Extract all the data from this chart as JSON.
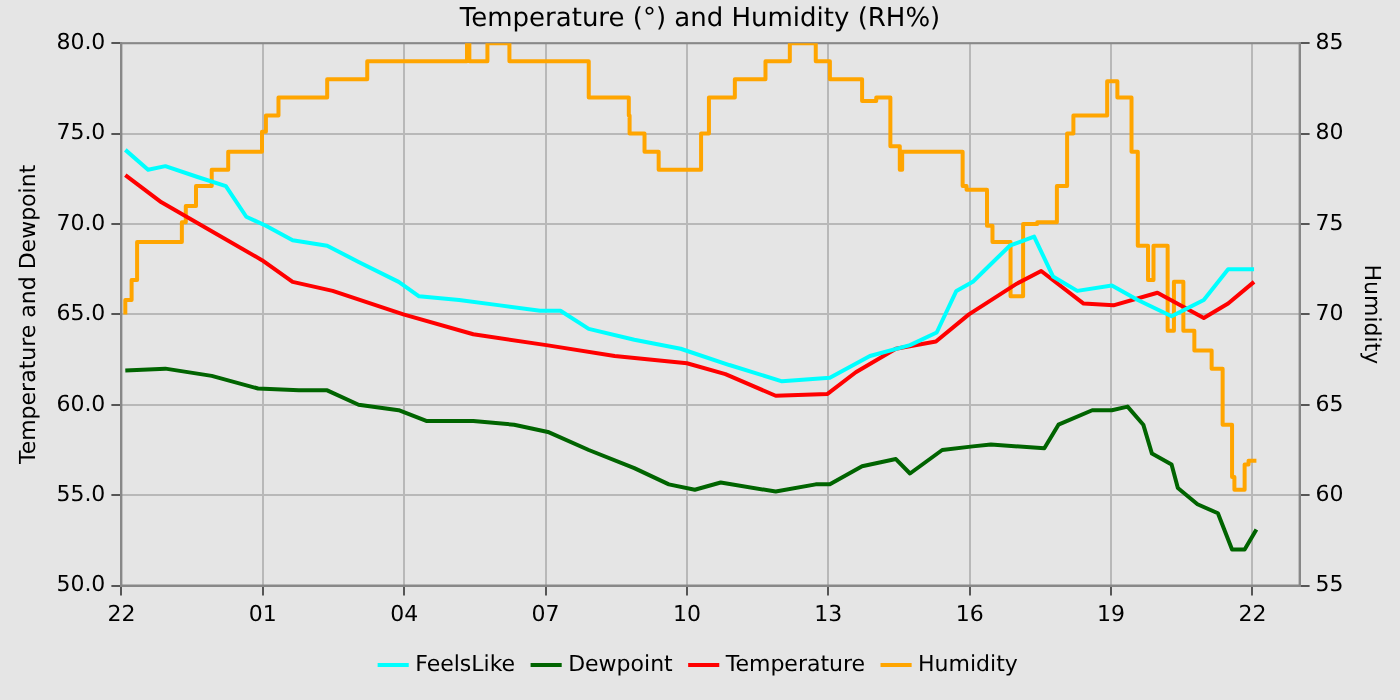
{
  "chart_data": {
    "type": "line",
    "title": "Temperature (°) and Humidity (RH%)",
    "ylabel": "Temperature and Dewpoint",
    "y2label": "Humidity",
    "xlim": [
      "--01-01T22:00",
      "--01-02T23:00"
    ],
    "xticks": [
      {
        "value": "--01-01T22:00",
        "label": "22"
      },
      {
        "value": "--01-02T01:00",
        "label": "01"
      },
      {
        "value": "--01-02T04:00",
        "label": "04"
      },
      {
        "value": "--01-02T07:00",
        "label": "07"
      },
      {
        "value": "--01-02T10:00",
        "label": "10"
      },
      {
        "value": "--01-02T13:00",
        "label": "13"
      },
      {
        "value": "--01-02T16:00",
        "label": "16"
      },
      {
        "value": "--01-02T19:00",
        "label": "19"
      },
      {
        "value": "--01-02T22:00",
        "label": "22"
      }
    ],
    "ylim": [
      50,
      80
    ],
    "yticks": [
      {
        "value": 50,
        "label": "50.0"
      },
      {
        "value": 55,
        "label": "55.0"
      },
      {
        "value": 60,
        "label": "60.0"
      },
      {
        "value": 65,
        "label": "65.0"
      },
      {
        "value": 70,
        "label": "70.0"
      },
      {
        "value": 75,
        "label": "75.0"
      },
      {
        "value": 80,
        "label": "80.0"
      }
    ],
    "y2lim": [
      55,
      85
    ],
    "y2ticks": [
      55,
      60,
      65,
      70,
      75,
      80,
      85
    ],
    "grid": true,
    "legend": "bottom",
    "series": [
      {
        "name": "FeelsLike",
        "color": "#00ffff",
        "x": [
          "--01-01T22:05",
          "--01-01T22:34",
          "--01-01T22:56",
          "--01-01T23:37",
          "--01-02T00:13",
          "--01-02T00:39",
          "--01-02T01:04",
          "--01-02T01:38",
          "--01-02T02:22",
          "--01-02T03:02",
          "--01-02T03:53",
          "--01-02T04:19",
          "--01-02T05:10",
          "--01-02T06:02",
          "--01-02T06:53",
          "--01-02T07:19",
          "--01-02T07:55",
          "--01-02T08:53",
          "--01-02T09:52",
          "--01-02T10:54",
          "--01-02T12:01",
          "--01-02T13:02",
          "--01-02T13:53",
          "--01-02T14:44",
          "--01-02T15:18",
          "--01-02T15:43",
          "--01-02T16:04",
          "--01-02T16:18",
          "--01-02T16:51",
          "--01-02T17:22",
          "--01-02T17:46",
          "--01-02T18:17",
          "--01-02T19:01",
          "--01-02T19:34",
          "--01-02T20:17",
          "--01-02T20:58",
          "--01-02T21:29",
          "--01-02T22:02"
        ],
        "values": [
          74.1,
          73.0,
          73.2,
          72.6,
          72.1,
          70.4,
          69.9,
          69.1,
          68.8,
          67.9,
          66.8,
          66.0,
          65.8,
          65.5,
          65.2,
          65.2,
          64.2,
          63.6,
          63.1,
          62.2,
          61.3,
          61.5,
          62.7,
          63.3,
          64.0,
          66.3,
          66.8,
          67.4,
          68.8,
          69.3,
          67.1,
          66.3,
          66.6,
          65.8,
          64.9,
          65.8,
          67.5,
          67.5
        ]
      },
      {
        "name": "Dewpoint",
        "color": "#006400",
        "x": [
          "--01-01T22:05",
          "--01-01T22:56",
          "--01-01T23:55",
          "--01-02T00:54",
          "--01-02T01:46",
          "--01-02T02:22",
          "--01-02T03:02",
          "--01-02T03:53",
          "--01-02T04:29",
          "--01-02T05:28",
          "--01-02T06:20",
          "--01-02T07:03",
          "--01-02T07:55",
          "--01-02T08:53",
          "--01-02T09:37",
          "--01-02T10:10",
          "--01-02T10:43",
          "--01-02T11:53",
          "--01-02T12:44",
          "--01-02T13:02",
          "--01-02T13:43",
          "--01-02T14:26",
          "--01-02T14:44",
          "--01-02T15:25",
          "--01-02T16:04",
          "--01-02T16:27",
          "--01-02T17:35",
          "--01-02T17:53",
          "--01-02T18:36",
          "--01-02T19:01",
          "--01-02T19:21",
          "--01-02T19:41",
          "--01-02T19:52",
          "--01-02T20:17",
          "--01-02T20:25",
          "--01-02T20:50",
          "--01-02T21:16",
          "--01-02T21:34",
          "--01-02T21:50",
          "--01-02T22:05"
        ],
        "values": [
          61.9,
          62.0,
          61.6,
          60.9,
          60.8,
          60.8,
          60.0,
          59.7,
          59.1,
          59.1,
          58.9,
          58.5,
          57.5,
          56.5,
          55.6,
          55.3,
          55.7,
          55.2,
          55.6,
          55.6,
          56.6,
          57.0,
          56.2,
          57.5,
          57.7,
          57.8,
          57.6,
          58.9,
          59.7,
          59.7,
          59.9,
          58.9,
          57.3,
          56.7,
          55.4,
          54.5,
          54.0,
          52.0,
          52.0,
          53.1
        ]
      },
      {
        "name": "Temperature",
        "color": "#ff0000",
        "x": [
          "--01-01T22:05",
          "--01-01T22:51",
          "--01-01T23:55",
          "--01-02T00:59",
          "--01-02T01:38",
          "--01-02T02:29",
          "--01-02T03:59",
          "--01-02T05:28",
          "--01-02T07:01",
          "--01-02T08:28",
          "--01-02T10:00",
          "--01-02T10:49",
          "--01-02T11:53",
          "--01-02T12:59",
          "--01-02T13:35",
          "--01-02T14:26",
          "--01-02T15:17",
          "--01-02T15:59",
          "--01-02T17:00",
          "--01-02T17:31",
          "--01-02T18:25",
          "--01-02T19:03",
          "--01-02T19:59",
          "--01-02T20:58",
          "--01-02T21:29",
          "--01-02T22:02"
        ],
        "values": [
          72.7,
          71.2,
          69.6,
          68.0,
          66.8,
          66.3,
          65.0,
          63.9,
          63.3,
          62.7,
          62.3,
          61.7,
          60.5,
          60.6,
          61.8,
          63.1,
          63.5,
          65.0,
          66.7,
          67.4,
          65.6,
          65.5,
          66.2,
          64.8,
          65.6,
          66.8
        ]
      },
      {
        "name": "Humidity",
        "color": "#ffa500",
        "axis": "y2",
        "type": "step",
        "x": [
          "--01-01T22:05",
          "--01-01T22:13",
          "--01-01T22:20",
          "--01-01T22:38",
          "--01-01T23:17",
          "--01-01T23:22",
          "--01-01T23:35",
          "--01-01T23:55",
          "--01-02T00:16",
          "--01-02T00:29",
          "--01-02T00:59",
          "--01-02T01:04",
          "--01-02T01:20",
          "--01-02T01:38",
          "--01-02T02:22",
          "--01-02T02:23",
          "--01-02T03:13",
          "--01-02T03:14",
          "--01-02T05:20",
          "--01-02T05:23",
          "--01-02T05:46",
          "--01-02T06:14",
          "--01-02T06:27",
          "--01-02T07:55",
          "--01-02T07:56",
          "--01-02T08:46",
          "--01-02T08:47",
          "--01-02T09:06",
          "--01-02T09:24",
          "--01-02T09:37",
          "--01-02T10:18",
          "--01-02T10:28",
          "--01-02T11:01",
          "--01-02T11:40",
          "--01-02T12:11",
          "--01-02T12:44",
          "--01-02T13:02",
          "--01-02T13:43",
          "--01-02T14:01",
          "--01-02T14:19",
          "--01-02T14:31",
          "--01-02T14:34",
          "--01-02T14:52",
          "--01-02T15:51",
          "--01-02T15:56",
          "--01-02T16:22",
          "--01-02T16:29",
          "--01-02T16:52",
          "--01-02T17:08",
          "--01-02T17:26",
          "--01-02T17:51",
          "--01-02T18:04",
          "--01-02T18:12",
          "--01-02T18:25",
          "--01-02T18:55",
          "--01-02T19:08",
          "--01-02T19:26",
          "--01-02T19:34",
          "--01-02T19:47",
          "--01-02T19:54",
          "--01-02T20:12",
          "--01-02T20:20",
          "--01-02T20:32",
          "--01-02T20:46",
          "--01-02T21:08",
          "--01-02T21:22",
          "--01-02T21:34",
          "--01-02T21:37",
          "--01-02T21:50",
          "--01-02T21:55",
          "--01-02T22:05"
        ],
        "values": [
          70.0,
          70.8,
          71.9,
          74.0,
          74.0,
          75.1,
          76.0,
          77.1,
          78.0,
          79.0,
          79.0,
          80.1,
          81.0,
          82.0,
          82.0,
          83.0,
          83.0,
          84.0,
          84.0,
          85.0,
          84.0,
          85.0,
          84.0,
          84.0,
          82.0,
          82.0,
          81.0,
          80.0,
          79.0,
          78.0,
          78.0,
          80.0,
          82.0,
          83.0,
          84.0,
          85.0,
          84.0,
          83.0,
          81.8,
          82.0,
          79.3,
          78.0,
          79.0,
          79.0,
          77.1,
          76.9,
          74.9,
          74.0,
          71.0,
          75.0,
          75.1,
          77.1,
          80.0,
          81.0,
          81.0,
          82.9,
          82.0,
          79.0,
          73.8,
          71.9,
          73.8,
          69.1,
          71.8,
          69.1,
          68.0,
          67.0,
          63.9,
          61.0,
          60.3,
          61.7,
          61.9
        ]
      }
    ]
  }
}
